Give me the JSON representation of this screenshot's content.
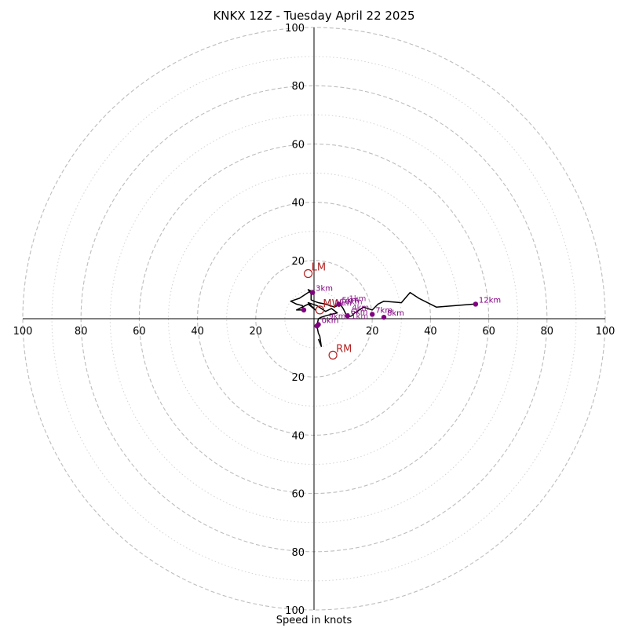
{
  "chart_data": {
    "type": "hodograph",
    "title": "KNKX 12Z - Tuesday April 22 2025",
    "xlabel": "Speed in knots",
    "ring_max": 100,
    "dashed_rings": [
      20,
      40,
      60,
      80,
      100
    ],
    "dotted_rings": [
      10,
      30,
      50,
      70,
      90
    ],
    "tick_values": [
      20,
      40,
      60,
      80,
      100
    ],
    "tick_labels": [
      "20",
      "40",
      "60",
      "80",
      "100"
    ],
    "hodograph_trace": [
      [
        1.5,
        -7
      ],
      [
        2.5,
        -9.5
      ],
      [
        2.0,
        -6
      ],
      [
        1.5,
        -5
      ],
      [
        1.0,
        -2.5
      ],
      [
        1.5,
        0
      ],
      [
        2.5,
        0.5
      ],
      [
        4,
        1
      ],
      [
        6,
        1.5
      ],
      [
        8,
        2
      ],
      [
        6,
        3.5
      ],
      [
        4,
        2.5
      ],
      [
        1,
        4.5
      ],
      [
        -2,
        5.5
      ],
      [
        0.5,
        3
      ],
      [
        -2,
        5
      ],
      [
        -6,
        3
      ],
      [
        -3.5,
        3
      ],
      [
        -4,
        4.5
      ],
      [
        -6,
        5
      ],
      [
        -8,
        6
      ],
      [
        -5,
        7
      ],
      [
        -2,
        9
      ],
      [
        -1,
        9.5
      ],
      [
        -2,
        10
      ],
      [
        -1,
        8.5
      ],
      [
        -1,
        6.5
      ],
      [
        0,
        6
      ],
      [
        1.5,
        5.5
      ],
      [
        4,
        5
      ],
      [
        7,
        4
      ],
      [
        9,
        5
      ],
      [
        10,
        3.5
      ],
      [
        11,
        1.5
      ],
      [
        11.5,
        0.5
      ],
      [
        13,
        1
      ],
      [
        14,
        2
      ],
      [
        17,
        4
      ],
      [
        20,
        3
      ],
      [
        22,
        5
      ],
      [
        24,
        6
      ],
      [
        30,
        5.5
      ],
      [
        33,
        9
      ],
      [
        36,
        7
      ],
      [
        42,
        4
      ],
      [
        55,
        5
      ]
    ],
    "height_points": [
      {
        "label": "0km",
        "u": 1.5,
        "v": -2.0
      },
      {
        "label": "3km",
        "u": -0.5,
        "v": 9.0
      },
      {
        "label": "5km",
        "u": 8.5,
        "v": 5.0
      },
      {
        "label": "6km",
        "u": 11.5,
        "v": 1.0
      },
      {
        "label": "7km",
        "u": 20.0,
        "v": 1.5
      },
      {
        "label": "8km",
        "u": 24.0,
        "v": 0.5
      },
      {
        "label": "12km",
        "u": 55.5,
        "v": 5.0
      },
      {
        "label": "",
        "u": -3.5,
        "v": 3.0
      },
      {
        "label": "",
        "u": 1.0,
        "v": -2.5
      }
    ],
    "cluster_labels": [
      "1km",
      "2km",
      "4km",
      "9km",
      "10km",
      "11km"
    ],
    "storm_motions": [
      {
        "label": "LM",
        "u": -2.0,
        "v": 15.5
      },
      {
        "label": "RM",
        "u": 6.5,
        "v": -12.5
      },
      {
        "label": "MW",
        "u": 2.0,
        "v": 3.0
      }
    ],
    "colors": {
      "trace": "#000000",
      "height_points": "#800080",
      "storm_motion": "#b22222",
      "grid": "#bdbdbd"
    }
  }
}
